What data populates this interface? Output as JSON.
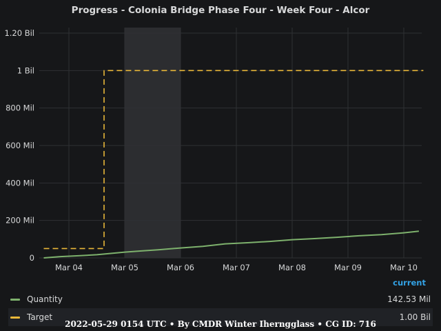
{
  "panel": {
    "title": "Progress - Colonia Bridge Phase Four - Week Four - Alcor"
  },
  "legend": {
    "header": "current",
    "items": [
      {
        "label": "Quantity",
        "value": "142.53 Mil",
        "color": "#7eb26d"
      },
      {
        "label": "Target",
        "value": "1.00 Bil",
        "color": "#eab839"
      }
    ]
  },
  "footer": "2022-05-29 0154 UTC • By CMDR Winter Iherngglass • CG ID: 716",
  "chart_data": {
    "type": "line",
    "title": "Progress - Colonia Bridge Phase Four - Week Four - Alcor",
    "x_unit": "days since Mar 04",
    "x_ticks": [
      "Mar 04",
      "Mar 05",
      "Mar 06",
      "Mar 07",
      "Mar 08",
      "Mar 09",
      "Mar 10"
    ],
    "y_ticks": [
      "0",
      "200 Mil",
      "400 Mil",
      "600 Mil",
      "800 Mil",
      "1 Bil",
      "1.20 Bil"
    ],
    "ylim": [
      0,
      1200000000
    ],
    "grid": true,
    "legend_position": "bottom",
    "highlight_band": [
      1,
      2
    ],
    "series": [
      {
        "name": "Quantity",
        "color": "#7eb26d",
        "style": "solid",
        "x": [
          -0.45,
          -0.15,
          0.2,
          0.5,
          0.75,
          1.0,
          1.3,
          1.6,
          2.0,
          2.4,
          2.8,
          3.2,
          3.6,
          4.0,
          4.4,
          4.8,
          5.2,
          5.6,
          6.0,
          6.27
        ],
        "y": [
          0,
          7000000,
          12000000,
          17000000,
          24000000,
          31000000,
          37000000,
          43000000,
          53000000,
          62000000,
          75000000,
          81000000,
          88000000,
          97000000,
          103000000,
          110000000,
          118000000,
          124000000,
          134000000,
          142530000
        ]
      },
      {
        "name": "Target",
        "color": "#eab839",
        "style": "dashed",
        "x": [
          -0.45,
          0.63,
          0.63,
          6.35
        ],
        "y": [
          50000000,
          50000000,
          1000000000,
          1000000000
        ]
      }
    ]
  }
}
